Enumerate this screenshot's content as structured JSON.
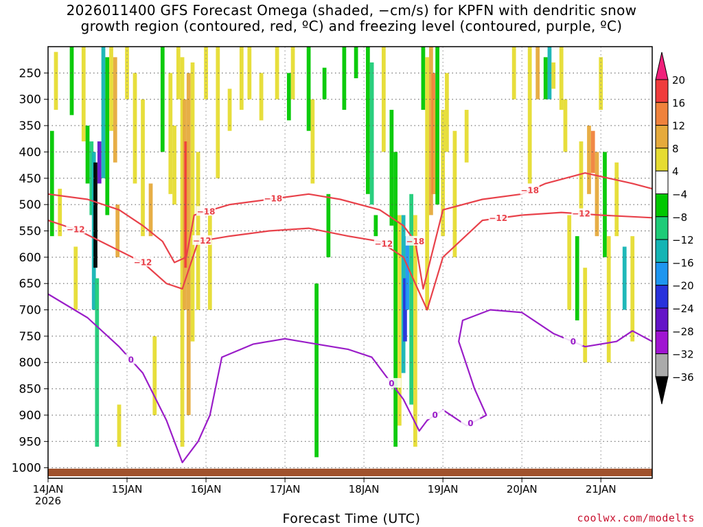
{
  "title": "2026011400 GFS Forecast Omega (shaded, −cm/s) for KPFN with dendritic snow\ngrowth region (contoured, red, ºC) and freezing level (contoured, purple, ºC)",
  "credit": "coolwx.com/modelts",
  "chart_data": {
    "type": "heatmap",
    "title": "2026011400 GFS Forecast Omega (shaded, −cm/s) for KPFN with dendritic snow growth region (contoured, red, ºC) and freezing level (contoured, purple, ºC)",
    "xlabel": "Forecast Time (UTC)",
    "ylabel": "",
    "x_ticks": [
      "14JAN\n2026",
      "15JAN",
      "16JAN",
      "17JAN",
      "18JAN",
      "19JAN",
      "20JAN",
      "21JAN"
    ],
    "x_range_days": [
      0,
      7.65
    ],
    "y_ticks": [
      "250",
      "300",
      "350",
      "400",
      "450",
      "500",
      "550",
      "600",
      "650",
      "700",
      "750",
      "800",
      "850",
      "900",
      "950",
      "1000"
    ],
    "y_values": [
      250,
      300,
      350,
      400,
      450,
      500,
      550,
      600,
      650,
      700,
      750,
      800,
      850,
      900,
      950,
      1000
    ],
    "y_range_hpa": [
      200,
      1020
    ],
    "colorbar": {
      "labels": [
        "20",
        "16",
        "12",
        "8",
        "4",
        "−4",
        "−8",
        "−12",
        "−16",
        "−20",
        "−24",
        "−28",
        "−32",
        "−36"
      ],
      "colors": [
        "#f0207a",
        "#f03c3c",
        "#f0823c",
        "#e6aa3c",
        "#e6dc32",
        "#ffffff",
        "#00c800",
        "#1ecc78",
        "#14b4b4",
        "#1e96f0",
        "#2832dc",
        "#6414c8",
        "#a014d2",
        "#aaaaaa",
        "#000000"
      ]
    },
    "omega_cells": [
      {
        "t": 0.05,
        "p1": 360,
        "p2": 560,
        "v": -6
      },
      {
        "t": 0.1,
        "p1": 210,
        "p2": 320,
        "v": 6
      },
      {
        "t": 0.15,
        "p1": 470,
        "p2": 560,
        "v": 6
      },
      {
        "t": 0.3,
        "p1": 200,
        "p2": 330,
        "v": -6
      },
      {
        "t": 0.35,
        "p1": 580,
        "p2": 700,
        "v": 6
      },
      {
        "t": 0.45,
        "p1": 200,
        "p2": 380,
        "v": 6
      },
      {
        "t": 0.5,
        "p1": 350,
        "p2": 460,
        "v": -6
      },
      {
        "t": 0.55,
        "p1": 380,
        "p2": 520,
        "v": -10
      },
      {
        "t": 0.58,
        "p1": 400,
        "p2": 700,
        "v": -14
      },
      {
        "t": 0.6,
        "p1": 420,
        "p2": 620,
        "v": -36
      },
      {
        "t": 0.62,
        "p1": 640,
        "p2": 960,
        "v": -10
      },
      {
        "t": 0.65,
        "p1": 380,
        "p2": 460,
        "v": -24
      },
      {
        "t": 0.7,
        "p1": 200,
        "p2": 450,
        "v": -14
      },
      {
        "t": 0.75,
        "p1": 220,
        "p2": 520,
        "v": -6
      },
      {
        "t": 0.8,
        "p1": 200,
        "p2": 360,
        "v": 6
      },
      {
        "t": 0.85,
        "p1": 220,
        "p2": 420,
        "v": 10
      },
      {
        "t": 0.88,
        "p1": 500,
        "p2": 600,
        "v": 10
      },
      {
        "t": 0.9,
        "p1": 880,
        "p2": 960,
        "v": 6
      },
      {
        "t": 1.0,
        "p1": 200,
        "p2": 300,
        "v": 6
      },
      {
        "t": 1.1,
        "p1": 250,
        "p2": 460,
        "v": 6
      },
      {
        "t": 1.2,
        "p1": 300,
        "p2": 560,
        "v": 6
      },
      {
        "t": 1.3,
        "p1": 460,
        "p2": 560,
        "v": 10
      },
      {
        "t": 1.35,
        "p1": 750,
        "p2": 900,
        "v": 6
      },
      {
        "t": 1.45,
        "p1": 200,
        "p2": 400,
        "v": -6
      },
      {
        "t": 1.55,
        "p1": 250,
        "p2": 480,
        "v": 6
      },
      {
        "t": 1.6,
        "p1": 350,
        "p2": 500,
        "v": 6
      },
      {
        "t": 1.65,
        "p1": 200,
        "p2": 300,
        "v": 6
      },
      {
        "t": 1.7,
        "p1": 220,
        "p2": 960,
        "v": 6
      },
      {
        "t": 1.73,
        "p1": 300,
        "p2": 700,
        "v": 10
      },
      {
        "t": 1.75,
        "p1": 380,
        "p2": 620,
        "v": 16
      },
      {
        "t": 1.78,
        "p1": 250,
        "p2": 900,
        "v": 10
      },
      {
        "t": 1.83,
        "p1": 230,
        "p2": 760,
        "v": 6
      },
      {
        "t": 1.9,
        "p1": 400,
        "p2": 700,
        "v": 6
      },
      {
        "t": 2.0,
        "p1": 200,
        "p2": 300,
        "v": 6
      },
      {
        "t": 2.05,
        "p1": 520,
        "p2": 700,
        "v": 6
      },
      {
        "t": 2.15,
        "p1": 200,
        "p2": 450,
        "v": 6
      },
      {
        "t": 2.3,
        "p1": 280,
        "p2": 360,
        "v": 6
      },
      {
        "t": 2.45,
        "p1": 200,
        "p2": 320,
        "v": 6
      },
      {
        "t": 2.55,
        "p1": 200,
        "p2": 300,
        "v": 6
      },
      {
        "t": 2.7,
        "p1": 250,
        "p2": 340,
        "v": 6
      },
      {
        "t": 2.9,
        "p1": 200,
        "p2": 300,
        "v": 6
      },
      {
        "t": 3.05,
        "p1": 250,
        "p2": 340,
        "v": -6
      },
      {
        "t": 3.1,
        "p1": 200,
        "p2": 300,
        "v": 6
      },
      {
        "t": 3.3,
        "p1": 200,
        "p2": 360,
        "v": -6
      },
      {
        "t": 3.35,
        "p1": 300,
        "p2": 460,
        "v": 6
      },
      {
        "t": 3.4,
        "p1": 650,
        "p2": 980,
        "v": -6
      },
      {
        "t": 3.5,
        "p1": 240,
        "p2": 300,
        "v": -6
      },
      {
        "t": 3.55,
        "p1": 480,
        "p2": 600,
        "v": -6
      },
      {
        "t": 3.75,
        "p1": 200,
        "p2": 320,
        "v": -6
      },
      {
        "t": 3.9,
        "p1": 200,
        "p2": 260,
        "v": -6
      },
      {
        "t": 4.05,
        "p1": 200,
        "p2": 480,
        "v": -6
      },
      {
        "t": 4.1,
        "p1": 230,
        "p2": 500,
        "v": -10
      },
      {
        "t": 4.15,
        "p1": 520,
        "p2": 560,
        "v": -6
      },
      {
        "t": 4.25,
        "p1": 200,
        "p2": 400,
        "v": 6
      },
      {
        "t": 4.35,
        "p1": 320,
        "p2": 540,
        "v": -6
      },
      {
        "t": 4.4,
        "p1": 400,
        "p2": 960,
        "v": -6
      },
      {
        "t": 4.45,
        "p1": 520,
        "p2": 920,
        "v": 6
      },
      {
        "t": 4.5,
        "p1": 520,
        "p2": 820,
        "v": -14
      },
      {
        "t": 4.52,
        "p1": 640,
        "p2": 760,
        "v": -22
      },
      {
        "t": 4.55,
        "p1": 560,
        "p2": 700,
        "v": -18
      },
      {
        "t": 4.6,
        "p1": 480,
        "p2": 880,
        "v": -10
      },
      {
        "t": 4.65,
        "p1": 520,
        "p2": 960,
        "v": 6
      },
      {
        "t": 4.75,
        "p1": 200,
        "p2": 320,
        "v": -6
      },
      {
        "t": 4.8,
        "p1": 220,
        "p2": 700,
        "v": 6
      },
      {
        "t": 4.85,
        "p1": 200,
        "p2": 520,
        "v": 10
      },
      {
        "t": 4.88,
        "p1": 250,
        "p2": 480,
        "v": 14
      },
      {
        "t": 4.9,
        "p1": 300,
        "p2": 480,
        "v": 10
      },
      {
        "t": 4.93,
        "p1": 200,
        "p2": 500,
        "v": -6
      },
      {
        "t": 5.0,
        "p1": 320,
        "p2": 560,
        "v": 6
      },
      {
        "t": 5.05,
        "p1": 250,
        "p2": 400,
        "v": 6
      },
      {
        "t": 5.15,
        "p1": 360,
        "p2": 600,
        "v": 6
      },
      {
        "t": 5.3,
        "p1": 320,
        "p2": 420,
        "v": 6
      },
      {
        "t": 5.9,
        "p1": 200,
        "p2": 300,
        "v": 6
      },
      {
        "t": 6.1,
        "p1": 200,
        "p2": 460,
        "v": 6
      },
      {
        "t": 6.2,
        "p1": 200,
        "p2": 300,
        "v": 10
      },
      {
        "t": 6.3,
        "p1": 220,
        "p2": 300,
        "v": -6
      },
      {
        "t": 6.35,
        "p1": 200,
        "p2": 300,
        "v": -14
      },
      {
        "t": 6.4,
        "p1": 230,
        "p2": 280,
        "v": 6
      },
      {
        "t": 6.5,
        "p1": 200,
        "p2": 320,
        "v": 6
      },
      {
        "t": 6.55,
        "p1": 300,
        "p2": 400,
        "v": 6
      },
      {
        "t": 6.6,
        "p1": 520,
        "p2": 700,
        "v": 6
      },
      {
        "t": 6.7,
        "p1": 560,
        "p2": 720,
        "v": -6
      },
      {
        "t": 6.75,
        "p1": 380,
        "p2": 520,
        "v": 6
      },
      {
        "t": 6.8,
        "p1": 620,
        "p2": 800,
        "v": 6
      },
      {
        "t": 6.85,
        "p1": 350,
        "p2": 480,
        "v": 10
      },
      {
        "t": 6.9,
        "p1": 360,
        "p2": 440,
        "v": 14
      },
      {
        "t": 6.95,
        "p1": 400,
        "p2": 560,
        "v": 10
      },
      {
        "t": 7.0,
        "p1": 220,
        "p2": 320,
        "v": 6
      },
      {
        "t": 7.05,
        "p1": 400,
        "p2": 600,
        "v": -6
      },
      {
        "t": 7.1,
        "p1": 560,
        "p2": 800,
        "v": 6
      },
      {
        "t": 7.2,
        "p1": 420,
        "p2": 560,
        "v": 6
      },
      {
        "t": 7.3,
        "p1": 580,
        "p2": 700,
        "v": -14
      },
      {
        "t": 7.4,
        "p1": 560,
        "p2": 760,
        "v": 6
      }
    ],
    "contours": [
      {
        "name": "dgz_minus18",
        "label": "−18",
        "color": "#e8414a",
        "label_at": [
          2.0,
          2.85,
          4.65,
          6.1
        ],
        "points": [
          [
            0,
            480
          ],
          [
            0.5,
            490
          ],
          [
            0.9,
            510
          ],
          [
            1.2,
            540
          ],
          [
            1.45,
            570
          ],
          [
            1.6,
            610
          ],
          [
            1.75,
            600
          ],
          [
            1.85,
            520
          ],
          [
            2.3,
            500
          ],
          [
            2.8,
            490
          ],
          [
            3.3,
            480
          ],
          [
            3.7,
            490
          ],
          [
            4.2,
            510
          ],
          [
            4.5,
            540
          ],
          [
            4.65,
            570
          ],
          [
            4.75,
            660
          ],
          [
            4.85,
            600
          ],
          [
            5.0,
            510
          ],
          [
            5.5,
            490
          ],
          [
            6.0,
            480
          ],
          [
            6.3,
            460
          ],
          [
            6.8,
            440
          ],
          [
            7.4,
            460
          ],
          [
            7.65,
            470
          ]
        ]
      },
      {
        "name": "dgz_minus12",
        "label": "−12",
        "color": "#e8414a",
        "label_at": [
          0.35,
          1.2,
          1.95,
          4.25,
          5.7,
          6.75
        ],
        "points": [
          [
            0,
            530
          ],
          [
            0.4,
            550
          ],
          [
            0.8,
            580
          ],
          [
            1.2,
            610
          ],
          [
            1.5,
            650
          ],
          [
            1.7,
            660
          ],
          [
            1.9,
            570
          ],
          [
            2.3,
            560
          ],
          [
            2.8,
            550
          ],
          [
            3.3,
            545
          ],
          [
            3.8,
            560
          ],
          [
            4.2,
            570
          ],
          [
            4.5,
            600
          ],
          [
            4.65,
            650
          ],
          [
            4.8,
            700
          ],
          [
            5.0,
            600
          ],
          [
            5.5,
            530
          ],
          [
            6.0,
            520
          ],
          [
            6.5,
            515
          ],
          [
            7.0,
            520
          ],
          [
            7.65,
            525
          ]
        ]
      },
      {
        "name": "freezing_0",
        "label": "0",
        "color": "#9a1dc8",
        "label_at": [
          1.05,
          4.35,
          4.9,
          5.35,
          6.65
        ],
        "points": [
          [
            0,
            670
          ],
          [
            0.5,
            715
          ],
          [
            0.9,
            770
          ],
          [
            1.2,
            820
          ],
          [
            1.5,
            910
          ],
          [
            1.7,
            990
          ],
          [
            1.9,
            950
          ],
          [
            2.05,
            900
          ],
          [
            2.2,
            790
          ],
          [
            2.6,
            765
          ],
          [
            3.0,
            755
          ],
          [
            3.4,
            765
          ],
          [
            3.8,
            775
          ],
          [
            4.1,
            790
          ],
          [
            4.3,
            830
          ],
          [
            4.5,
            870
          ],
          [
            4.7,
            930
          ],
          [
            4.8,
            910
          ],
          [
            5.0,
            890
          ],
          [
            5.3,
            920
          ],
          [
            5.55,
            900
          ],
          [
            5.4,
            850
          ],
          [
            5.2,
            760
          ],
          [
            5.25,
            720
          ],
          [
            5.6,
            700
          ],
          [
            6.0,
            705
          ],
          [
            6.4,
            745
          ],
          [
            6.8,
            770
          ],
          [
            7.2,
            760
          ],
          [
            7.4,
            740
          ],
          [
            7.65,
            760
          ]
        ]
      }
    ]
  }
}
